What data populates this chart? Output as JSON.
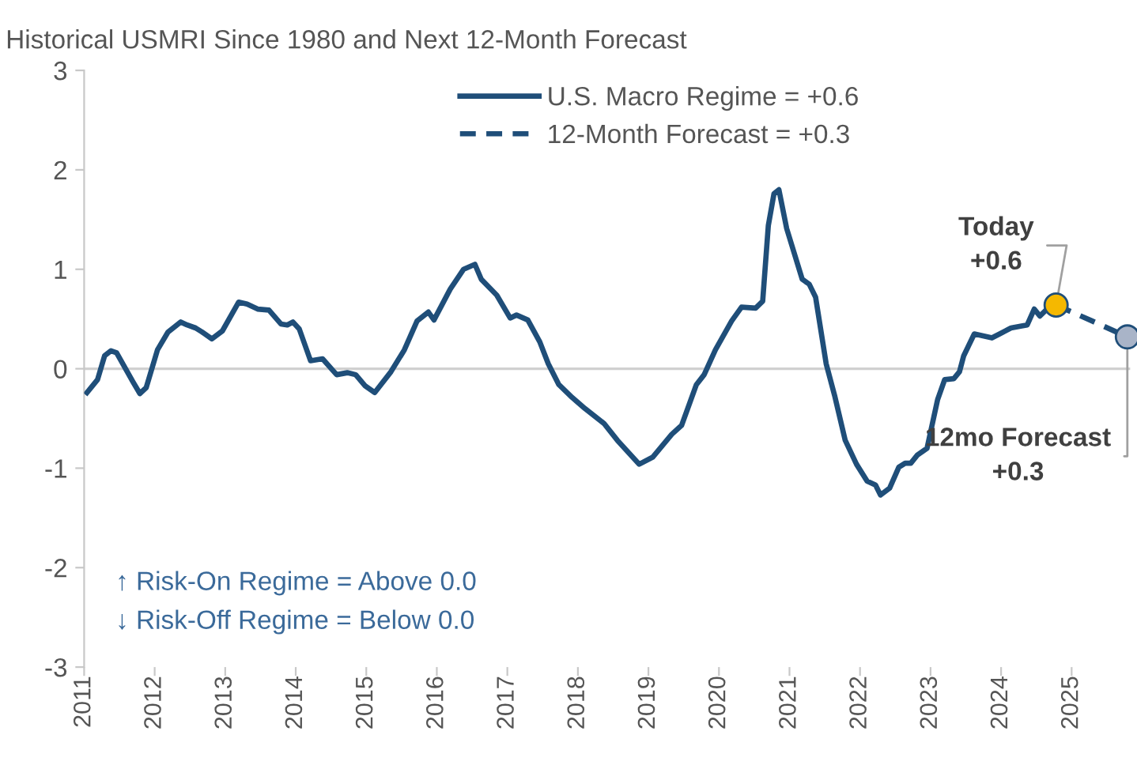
{
  "chart_data": {
    "type": "line",
    "title": "Historical USMRI Since 1980 and Next 12-Month Forecast",
    "xlim": [
      2011,
      2025.83
    ],
    "ylim": [
      -3,
      3
    ],
    "yticks": [
      -3,
      -2,
      -1,
      0,
      1,
      2,
      3
    ],
    "xticks": [
      {
        "value": 2011,
        "label": "2011"
      },
      {
        "value": 2012,
        "label": "2012"
      },
      {
        "value": 2013,
        "label": "2013"
      },
      {
        "value": 2014,
        "label": "2014"
      },
      {
        "value": 2015,
        "label": "2015"
      },
      {
        "value": 2016,
        "label": "2016"
      },
      {
        "value": 2017,
        "label": "2017"
      },
      {
        "value": 2018,
        "label": "2018"
      },
      {
        "value": 2019,
        "label": "2019"
      },
      {
        "value": 2020,
        "label": "2020"
      },
      {
        "value": 2021,
        "label": "2021"
      },
      {
        "value": 2022,
        "label": "2022"
      },
      {
        "value": 2023,
        "label": "2023"
      },
      {
        "value": 2024,
        "label": "2024"
      },
      {
        "value": 2025,
        "label": "2025"
      }
    ],
    "grid": false,
    "legend": "top",
    "ref_lines": [
      {
        "axis": "y",
        "value": 0,
        "color": "#d0d0d0"
      }
    ],
    "series": [
      {
        "name": "U.S. Macro Regime = +0.6",
        "color": "#1f4e79",
        "line_style": "solid",
        "x": [
          2011.04,
          2011.19,
          2011.29,
          2011.38,
          2011.46,
          2011.69,
          2011.79,
          2011.88,
          2012.04,
          2012.19,
          2012.37,
          2012.46,
          2012.58,
          2012.67,
          2012.81,
          2012.96,
          2013.19,
          2013.31,
          2013.46,
          2013.62,
          2013.79,
          2013.88,
          2013.96,
          2014.05,
          2014.21,
          2014.38,
          2014.58,
          2014.73,
          2014.85,
          2014.98,
          2015.12,
          2015.35,
          2015.54,
          2015.72,
          2015.88,
          2015.96,
          2016.19,
          2016.38,
          2016.54,
          2016.63,
          2016.85,
          2017.04,
          2017.13,
          2017.29,
          2017.46,
          2017.58,
          2017.73,
          2017.92,
          2018.1,
          2018.37,
          2018.56,
          2018.87,
          2019.06,
          2019.33,
          2019.47,
          2019.68,
          2019.79,
          2019.95,
          2020.18,
          2020.32,
          2020.52,
          2020.62,
          2020.7,
          2020.78,
          2020.85,
          2020.96,
          2021.18,
          2021.28,
          2021.37,
          2021.52,
          2021.64,
          2021.79,
          2021.95,
          2022.1,
          2022.22,
          2022.29,
          2022.42,
          2022.55,
          2022.64,
          2022.72,
          2022.81,
          2022.95,
          2023.1,
          2023.2,
          2023.33,
          2023.41,
          2023.47,
          2023.62,
          2023.87,
          2023.98,
          2024.14,
          2024.29,
          2024.37,
          2024.47,
          2024.55,
          2024.68,
          2024.78
        ],
        "values": [
          -0.24,
          -0.11,
          0.13,
          0.18,
          0.16,
          -0.13,
          -0.25,
          -0.19,
          0.19,
          0.37,
          0.47,
          0.44,
          0.41,
          0.37,
          0.3,
          0.38,
          0.67,
          0.65,
          0.6,
          0.59,
          0.45,
          0.44,
          0.47,
          0.4,
          0.08,
          0.1,
          -0.06,
          -0.04,
          -0.06,
          -0.17,
          -0.24,
          -0.03,
          0.19,
          0.48,
          0.57,
          0.49,
          0.8,
          1.0,
          1.05,
          0.9,
          0.74,
          0.51,
          0.54,
          0.49,
          0.27,
          0.05,
          -0.16,
          -0.29,
          -0.4,
          -0.55,
          -0.72,
          -0.96,
          -0.89,
          -0.66,
          -0.57,
          -0.16,
          -0.06,
          0.19,
          0.48,
          0.62,
          0.61,
          0.68,
          1.44,
          1.76,
          1.8,
          1.41,
          0.9,
          0.85,
          0.72,
          0.05,
          -0.27,
          -0.72,
          -0.96,
          -1.13,
          -1.17,
          -1.27,
          -1.2,
          -0.99,
          -0.95,
          -0.95,
          -0.87,
          -0.8,
          -0.31,
          -0.11,
          -0.1,
          -0.03,
          0.13,
          0.35,
          0.31,
          0.35,
          0.41,
          0.43,
          0.44,
          0.6,
          0.53,
          0.62,
          0.64
        ]
      },
      {
        "name": "12-Month Forecast = +0.3",
        "color": "#1f4e79",
        "line_style": "dashed",
        "x": [
          2024.78,
          2025.29,
          2025.79
        ],
        "values": [
          0.64,
          0.48,
          0.32
        ]
      },
      {
        "type": "scatter",
        "color": "#f5b800",
        "marker": "circle",
        "x": [
          2024.78
        ],
        "values": [
          0.64
        ]
      },
      {
        "type": "scatter",
        "color": "#a9b4c8",
        "marker": "circle",
        "x": [
          2025.79
        ],
        "values": [
          0.32
        ]
      }
    ],
    "annotations": [
      {
        "text": "Today\n+0.6",
        "x": 2024.78,
        "y": 0.64
      },
      {
        "text": "12mo Forecast\n+0.3",
        "x": 2025.79,
        "y": 0.32
      },
      "↑ Risk-On Regime = Above 0.0",
      "↓ Risk-Off Regime = Below 0.0"
    ]
  }
}
